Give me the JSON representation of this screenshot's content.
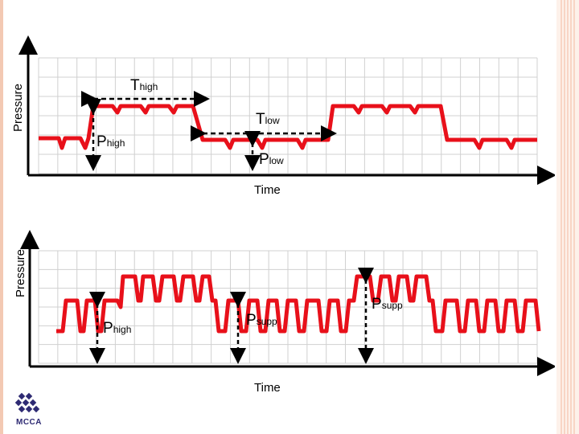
{
  "colors": {
    "signal": "#e8101a",
    "grid": "#d0d0d0",
    "axis": "#000000",
    "border": "#f2b9a0",
    "logo": "#2e2a73"
  },
  "top_diagram": {
    "y_axis_label": "Pressure",
    "x_axis_label": "Time",
    "t_high": {
      "base": "T",
      "sub": "high"
    },
    "t_low": {
      "base": "T",
      "sub": "low"
    },
    "p_high": {
      "base": "P",
      "sub": "high"
    },
    "p_low": {
      "base": "P",
      "sub": "low"
    }
  },
  "bottom_diagram": {
    "y_axis_label": "Pressure",
    "x_axis_label": "Time",
    "p_high": {
      "base": "P",
      "sub": "high"
    },
    "p_supp_1": {
      "base": "P",
      "sub": "supp"
    },
    "p_supp_2": {
      "base": "P",
      "sub": "supp"
    }
  },
  "logo": {
    "text": "MCCA",
    "icon": "mcca-logo-icon"
  }
}
